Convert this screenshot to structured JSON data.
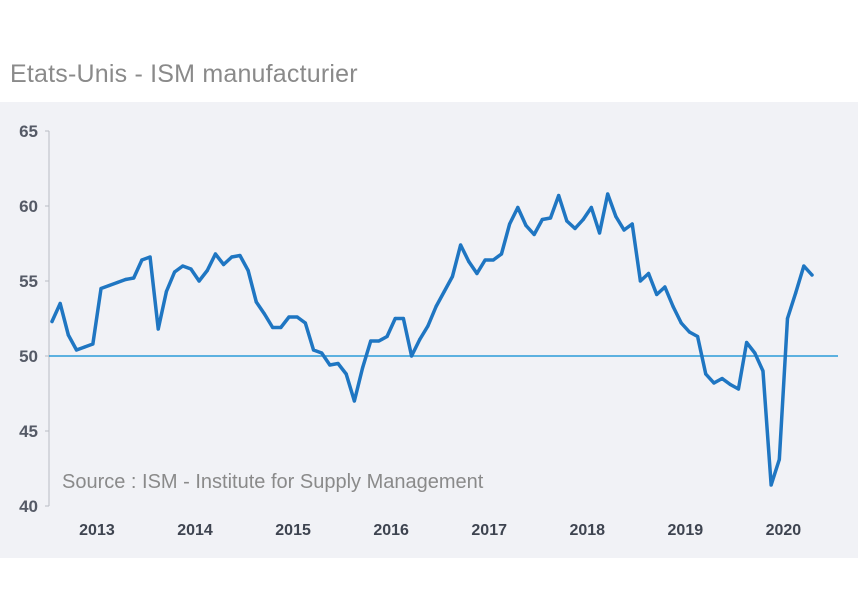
{
  "title": "Etats-Unis - ISM manufacturier",
  "source": "Source : ISM - Institute for Supply Management",
  "colors": {
    "line": "#1f76c2",
    "reference": "#2a9bd8",
    "panel": "#f1f2f6"
  },
  "chart_data": {
    "type": "line",
    "title": "Etats-Unis - ISM manufacturier",
    "xlabel": "",
    "ylabel": "",
    "ylim": [
      40,
      65
    ],
    "yticks": [
      "65",
      "60",
      "55",
      "50",
      "45",
      "40"
    ],
    "xticks": [
      "2013",
      "2014",
      "2015",
      "2016",
      "2017",
      "2018",
      "2019",
      "2020"
    ],
    "reference_line": 50,
    "series": [
      {
        "name": "ISM manufacturier",
        "start": "2013-01",
        "values": [
          52.3,
          53.5,
          51.4,
          50.4,
          50.6,
          50.8,
          54.5,
          54.7,
          54.9,
          55.1,
          55.2,
          56.4,
          56.6,
          51.8,
          54.3,
          55.6,
          56.0,
          55.8,
          55.0,
          55.7,
          56.8,
          56.1,
          56.6,
          56.7,
          55.7,
          53.6,
          52.8,
          51.9,
          51.9,
          52.6,
          52.6,
          52.2,
          50.4,
          50.2,
          49.4,
          49.5,
          48.8,
          47.0,
          49.2,
          51.0,
          51.0,
          51.3,
          52.5,
          52.5,
          50.0,
          51.1,
          52.0,
          53.3,
          54.3,
          55.3,
          57.4,
          56.3,
          55.5,
          56.4,
          56.4,
          56.8,
          58.8,
          59.9,
          58.7,
          58.1,
          59.1,
          59.2,
          60.7,
          59.0,
          58.5,
          59.1,
          59.9,
          58.2,
          60.8,
          59.3,
          58.4,
          58.8,
          55.0,
          55.5,
          54.1,
          54.6,
          53.3,
          52.2,
          51.6,
          51.3,
          48.8,
          48.2,
          48.5,
          48.1,
          47.8,
          50.9,
          50.2,
          49.0,
          41.4,
          43.1,
          52.5,
          54.2,
          56.0,
          55.4
        ]
      }
    ]
  }
}
